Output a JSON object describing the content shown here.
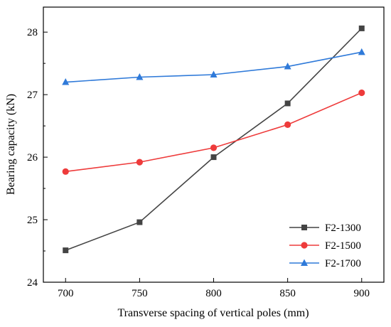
{
  "chart_data": {
    "type": "line",
    "xlabel": "Transverse spacing of vertical poles (mm)",
    "ylabel": "Bearing capacity (kN)",
    "x": [
      700,
      750,
      800,
      850,
      900
    ],
    "xticks": [
      "700",
      "750",
      "800",
      "850",
      "900"
    ],
    "yticks": [
      "24",
      "25",
      "26",
      "27",
      "28"
    ],
    "xlim": [
      685,
      915
    ],
    "ylim": [
      24,
      28.4
    ],
    "grid": false,
    "legend_position": "bottom-right",
    "series": [
      {
        "name": "F2-1300",
        "marker": "square",
        "color": "#444444",
        "values": [
          24.51,
          24.96,
          26.0,
          26.86,
          28.06
        ]
      },
      {
        "name": "F2-1500",
        "marker": "circle",
        "color": "#ee3b3b",
        "values": [
          25.77,
          25.92,
          26.15,
          26.52,
          27.03
        ]
      },
      {
        "name": "F2-1700",
        "marker": "triangle",
        "color": "#2f7ad9",
        "values": [
          27.2,
          27.28,
          27.32,
          27.45,
          27.68
        ]
      }
    ]
  }
}
